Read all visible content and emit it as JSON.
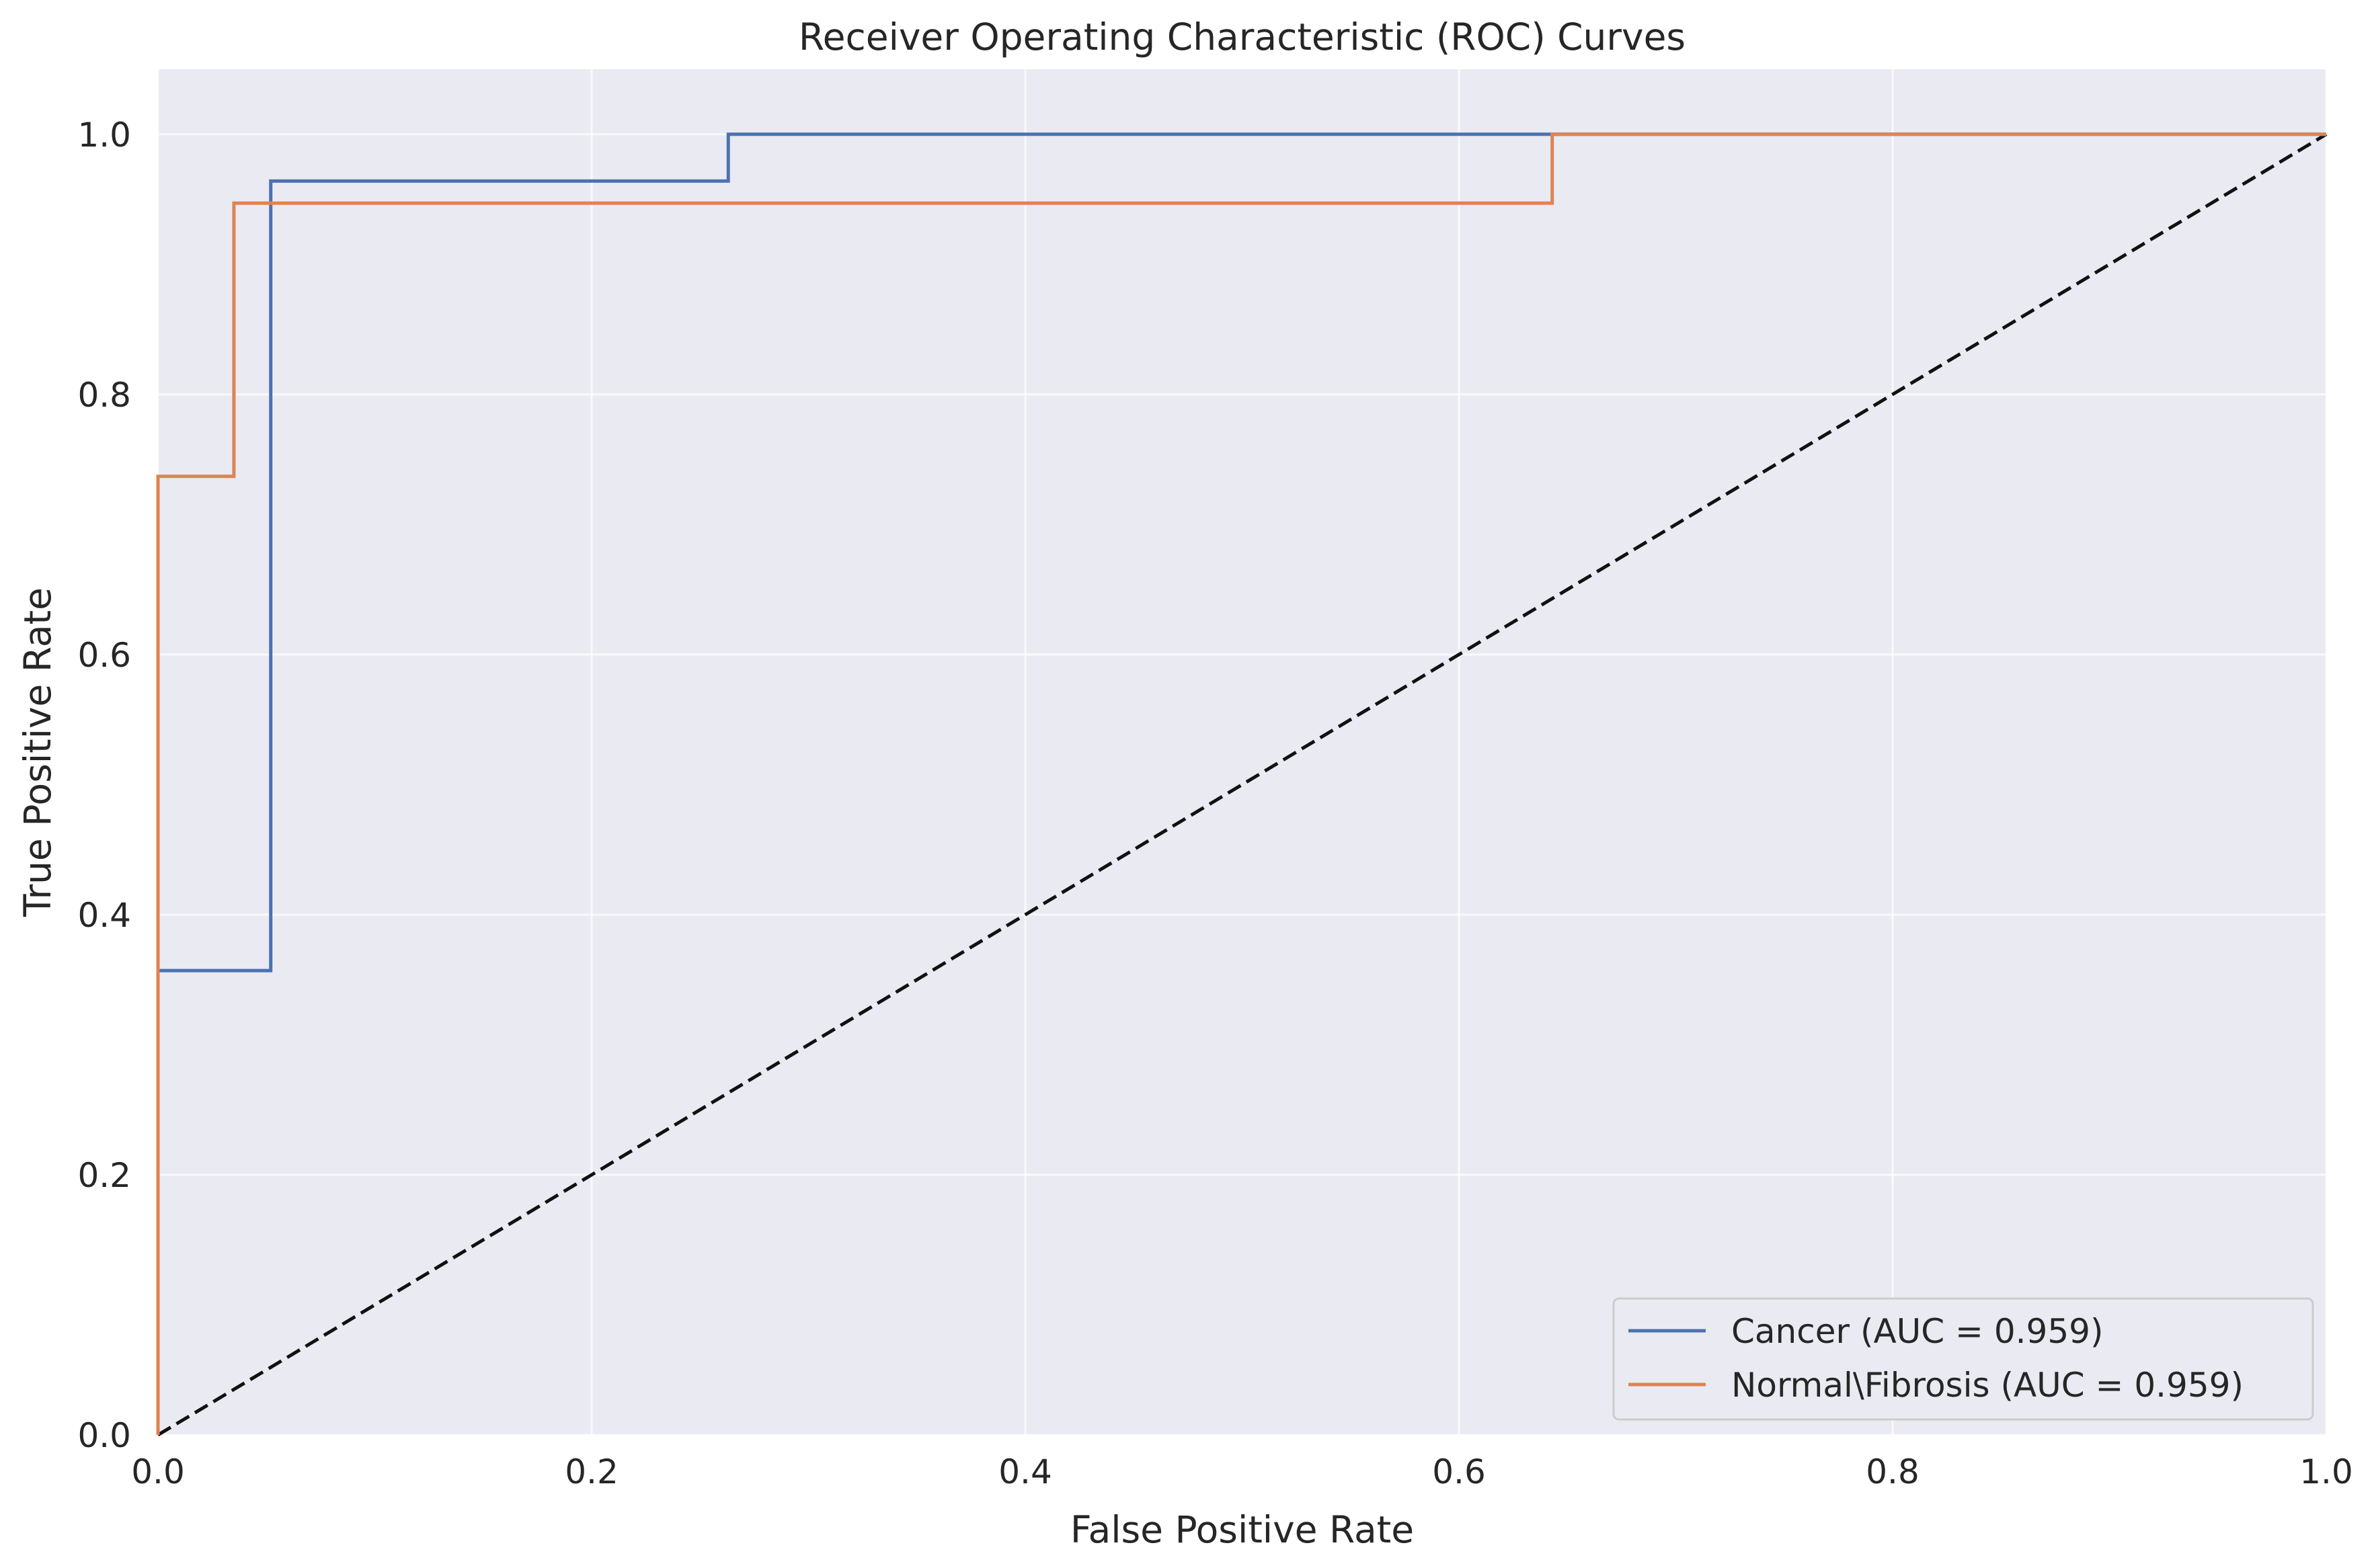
{
  "chart_data": {
    "type": "line",
    "title": "Receiver Operating Characteristic (ROC) Curves",
    "xlabel": "False Positive Rate",
    "ylabel": "True Positive Rate",
    "xlim": [
      0.0,
      1.0
    ],
    "ylim": [
      0.0,
      1.05
    ],
    "xticks": [
      "0.0",
      "0.2",
      "0.4",
      "0.6",
      "0.8",
      "1.0"
    ],
    "yticks": [
      "0.0",
      "0.2",
      "0.4",
      "0.6",
      "0.8",
      "1.0"
    ],
    "grid": true,
    "legend_position": "lower-right",
    "background_color": "#eaeaf2",
    "series": [
      {
        "name": "Cancer (AUC = 0.959)",
        "color": "#4c72b0",
        "step": true,
        "x": [
          0.0,
          0.0,
          0.052,
          0.052,
          0.263,
          0.263,
          1.0
        ],
        "y": [
          0.0,
          0.357,
          0.357,
          0.964,
          0.964,
          1.0,
          1.0
        ]
      },
      {
        "name": "Normal\\Fibrosis (AUC = 0.959)",
        "color": "#dd8452",
        "step": true,
        "x": [
          0.0,
          0.0,
          0.035,
          0.035,
          0.643,
          0.643,
          1.0
        ],
        "y": [
          0.0,
          0.737,
          0.737,
          0.947,
          0.947,
          1.0,
          1.0
        ]
      }
    ],
    "reference_line": {
      "x": [
        0.0,
        1.0
      ],
      "y": [
        0.0,
        1.0
      ],
      "color": "#111111",
      "style": "dashed"
    }
  }
}
